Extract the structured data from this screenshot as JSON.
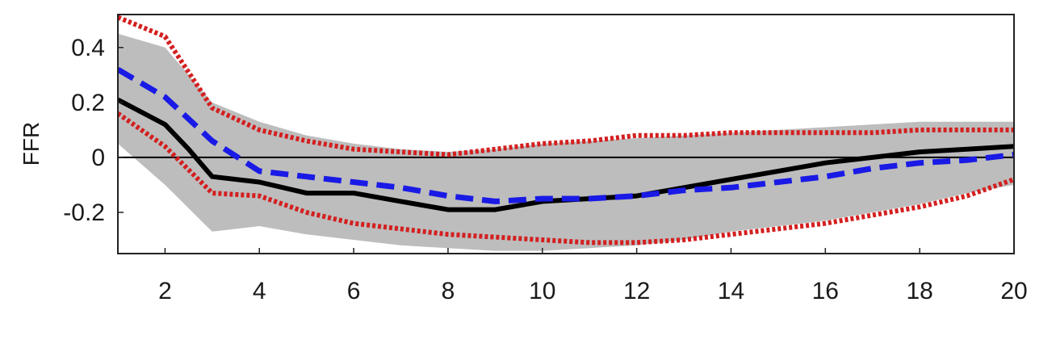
{
  "chart_data": {
    "type": "line",
    "title": "",
    "xlabel": "",
    "ylabel": "FFR",
    "xlim": [
      1,
      20
    ],
    "ylim": [
      -0.35,
      0.52
    ],
    "xticks": [
      2,
      4,
      6,
      8,
      10,
      12,
      14,
      16,
      18,
      20
    ],
    "yticks": [
      -0.2,
      0,
      0.2,
      0.4
    ],
    "ytick_labels": [
      "-0.2",
      "0",
      "0.2",
      "0.4"
    ],
    "grid": false,
    "zero_line": true,
    "band": {
      "color": "#bdbdbd",
      "x": [
        1,
        2,
        3,
        4,
        5,
        6,
        7,
        8,
        9,
        10,
        11,
        12,
        13,
        14,
        15,
        16,
        17,
        18,
        19,
        20
      ],
      "upper": [
        0.45,
        0.4,
        0.2,
        0.13,
        0.08,
        0.05,
        0.03,
        0.02,
        0.03,
        0.05,
        0.06,
        0.07,
        0.08,
        0.09,
        0.1,
        0.11,
        0.12,
        0.13,
        0.13,
        0.13
      ],
      "lower": [
        0.05,
        -0.1,
        -0.27,
        -0.25,
        -0.28,
        -0.3,
        -0.32,
        -0.33,
        -0.34,
        -0.34,
        -0.33,
        -0.32,
        -0.3,
        -0.27,
        -0.25,
        -0.23,
        -0.2,
        -0.17,
        -0.13,
        -0.1
      ]
    },
    "series": [
      {
        "style": "solid",
        "color": "#000000",
        "x": [
          1,
          2,
          2.5,
          3,
          4,
          5,
          6,
          7,
          8,
          9,
          10,
          11,
          12,
          13,
          14,
          15,
          16,
          17,
          18,
          19,
          20
        ],
        "values": [
          0.21,
          0.12,
          0.03,
          -0.07,
          -0.09,
          -0.13,
          -0.13,
          -0.16,
          -0.19,
          -0.19,
          -0.16,
          -0.15,
          -0.14,
          -0.11,
          -0.08,
          -0.05,
          -0.02,
          0.0,
          0.02,
          0.03,
          0.04
        ]
      },
      {
        "style": "dashed",
        "color": "#1a1ae6",
        "x": [
          1,
          2,
          3,
          4,
          5,
          6,
          7,
          8,
          9,
          10,
          11,
          12,
          13,
          14,
          15,
          16,
          17,
          18,
          19,
          20
        ],
        "values": [
          0.32,
          0.22,
          0.06,
          -0.05,
          -0.07,
          -0.09,
          -0.11,
          -0.14,
          -0.16,
          -0.15,
          -0.15,
          -0.14,
          -0.12,
          -0.11,
          -0.09,
          -0.07,
          -0.04,
          -0.02,
          -0.01,
          0.01
        ]
      },
      {
        "style": "dotted",
        "color": "#d41f1f",
        "x": [
          1,
          2,
          3,
          4,
          5,
          6,
          7,
          8,
          9,
          10,
          11,
          12,
          13,
          14,
          15,
          16,
          17,
          18,
          19,
          20
        ],
        "values": [
          0.51,
          0.44,
          0.18,
          0.1,
          0.06,
          0.03,
          0.02,
          0.01,
          0.03,
          0.05,
          0.06,
          0.08,
          0.08,
          0.09,
          0.09,
          0.09,
          0.09,
          0.1,
          0.1,
          0.1
        ]
      },
      {
        "style": "dotted",
        "color": "#d41f1f",
        "x": [
          1,
          2,
          3,
          4,
          5,
          6,
          7,
          8,
          9,
          10,
          11,
          12,
          13,
          14,
          15,
          16,
          17,
          18,
          19,
          20
        ],
        "values": [
          0.16,
          0.04,
          -0.13,
          -0.14,
          -0.2,
          -0.24,
          -0.26,
          -0.28,
          -0.29,
          -0.3,
          -0.31,
          -0.31,
          -0.3,
          -0.28,
          -0.26,
          -0.24,
          -0.21,
          -0.18,
          -0.14,
          -0.08
        ]
      }
    ]
  }
}
